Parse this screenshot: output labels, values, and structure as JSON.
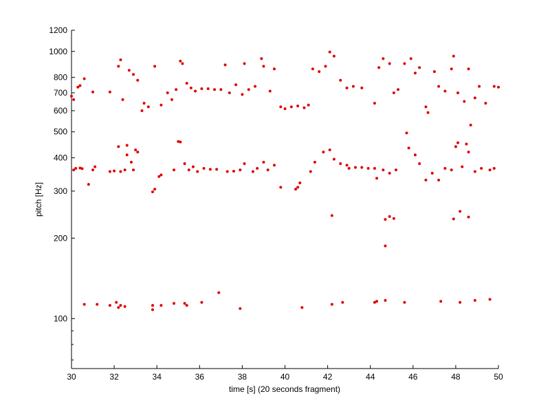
{
  "chart_data": {
    "type": "scatter",
    "xlabel": "time [s] (20 seconds fragment)",
    "ylabel": "pitch [Hz]",
    "color": "#e00000",
    "xlim": [
      30,
      50
    ],
    "ylim": [
      65,
      1200
    ],
    "ylog": true,
    "xticks": [
      30,
      32,
      34,
      36,
      38,
      40,
      42,
      44,
      46,
      48,
      50
    ],
    "yticks": [
      100,
      200,
      300,
      400,
      500,
      600,
      700,
      800,
      1000,
      1200
    ],
    "yminorticks": [
      70,
      80,
      90
    ],
    "x": [
      30.6,
      31.2,
      31.8,
      32.1,
      32.2,
      32.3,
      32.5,
      33.8,
      33.8,
      34.2,
      34.8,
      35.3,
      35.4,
      36.1,
      36.9,
      37.9,
      40.8,
      42.2,
      42.7,
      44.2,
      44.3,
      44.7,
      45.6,
      47.3,
      48.2,
      48.9,
      49.6,
      42.2,
      44.7,
      44.9,
      45.1,
      47.9,
      48.2,
      48.6,
      44.7,
      30.1,
      30.2,
      30.4,
      30.5,
      30.8,
      31.0,
      31.1,
      31.8,
      32.0,
      32.2,
      32.3,
      32.5,
      32.6,
      32.6,
      32.8,
      32.9,
      33.0,
      33.1,
      33.8,
      33.9,
      34.1,
      34.2,
      34.8,
      35.0,
      35.1,
      35.3,
      35.5,
      35.7,
      35.9,
      36.2,
      36.5,
      36.8,
      37.3,
      37.6,
      37.9,
      38.1,
      38.5,
      38.7,
      39.0,
      39.2,
      39.5,
      39.8,
      40.5,
      40.6,
      40.7,
      41.2,
      41.4,
      41.8,
      42.1,
      42.3,
      42.6,
      42.9,
      43.0,
      43.3,
      43.6,
      43.9,
      44.2,
      44.3,
      44.6,
      44.9,
      45.2,
      45.7,
      45.8,
      46.1,
      46.3,
      46.6,
      46.9,
      47.2,
      47.5,
      47.8,
      48.0,
      48.1,
      48.3,
      48.5,
      48.6,
      48.7,
      48.9,
      49.2,
      49.6,
      49.8,
      30.0,
      30.1,
      30.3,
      30.4,
      30.6,
      31.0,
      31.8,
      32.2,
      32.3,
      32.4,
      32.7,
      32.9,
      33.1,
      33.3,
      33.4,
      33.6,
      33.9,
      34.2,
      34.5,
      34.7,
      34.9,
      35.1,
      35.2,
      35.4,
      35.6,
      35.8,
      36.1,
      36.4,
      36.7,
      37.0,
      37.2,
      37.4,
      37.7,
      38.0,
      38.1,
      38.3,
      38.6,
      38.9,
      39.0,
      39.3,
      39.5,
      39.8,
      40.0,
      40.3,
      40.6,
      40.9,
      41.1,
      41.3,
      41.6,
      41.9,
      42.1,
      42.3,
      42.6,
      42.9,
      43.2,
      43.6,
      44.2,
      44.4,
      44.6,
      44.9,
      45.1,
      45.3,
      45.6,
      45.9,
      46.1,
      46.3,
      46.6,
      46.7,
      47.0,
      47.2,
      47.5,
      47.8,
      47.9,
      48.1,
      48.4,
      48.6,
      48.9,
      49.1,
      49.4,
      49.8,
      50.0
    ],
    "values": [
      113,
      113,
      112,
      115,
      110,
      112,
      111,
      108,
      112,
      112,
      114,
      114,
      112,
      115,
      125,
      109,
      110,
      113,
      115,
      115,
      116,
      117,
      115,
      116,
      115,
      117,
      118,
      243,
      235,
      241,
      237,
      236,
      252,
      240,
      187,
      360,
      365,
      366,
      364,
      318,
      360,
      370,
      355,
      357,
      440,
      355,
      360,
      445,
      410,
      385,
      360,
      428,
      420,
      298,
      305,
      340,
      345,
      360,
      460,
      458,
      380,
      360,
      370,
      355,
      365,
      362,
      362,
      355,
      356,
      360,
      380,
      355,
      365,
      385,
      360,
      375,
      310,
      305,
      310,
      322,
      355,
      385,
      420,
      428,
      395,
      380,
      375,
      365,
      368,
      368,
      365,
      365,
      335,
      360,
      350,
      360,
      495,
      435,
      410,
      380,
      330,
      350,
      330,
      365,
      360,
      440,
      455,
      370,
      450,
      420,
      530,
      355,
      365,
      360,
      365,
      680,
      660,
      735,
      745,
      790,
      705,
      705,
      880,
      930,
      660,
      850,
      820,
      780,
      600,
      640,
      620,
      880,
      630,
      700,
      660,
      720,
      920,
      900,
      760,
      730,
      710,
      725,
      725,
      720,
      720,
      890,
      700,
      750,
      690,
      900,
      720,
      740,
      940,
      880,
      710,
      860,
      620,
      610,
      620,
      625,
      615,
      630,
      860,
      840,
      880,
      995,
      960,
      780,
      730,
      740,
      730,
      640,
      870,
      940,
      900,
      700,
      720,
      900,
      940,
      830,
      870,
      620,
      590,
      840,
      740,
      710,
      860,
      960,
      700,
      650,
      860,
      670,
      740,
      640,
      740,
      735
    ]
  }
}
